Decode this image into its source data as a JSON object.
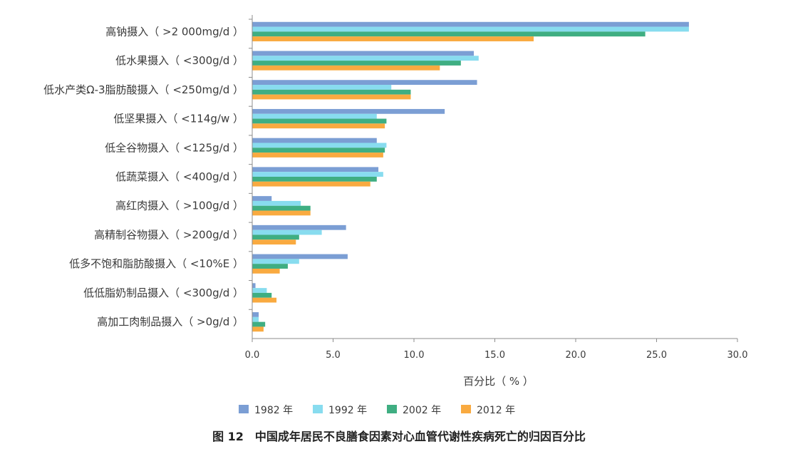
{
  "chart_data": {
    "type": "bar",
    "orientation": "horizontal",
    "categories": [
      "高钠摄入（ >2 000mg/d ）",
      "低水果摄入（ <300g/d ）",
      "低水产类Ω-3脂肪酸摄入（ <250mg/d ）",
      "低坚果摄入（ <114g/w ）",
      "低全谷物摄入（ <125g/d ）",
      "低蔬菜摄入（ <400g/d ）",
      "高红肉摄入（ >100g/d ）",
      "高精制谷物摄入（ >200g/d ）",
      "低多不饱和脂肪酸摄入（ <10%E ）",
      "低低脂奶制品摄入（ <300g/d ）",
      "高加工肉制品摄入（ >0g/d ）"
    ],
    "series": [
      {
        "name": "1982 年",
        "color": "#7b9ed4",
        "values": [
          27.0,
          13.7,
          13.9,
          11.9,
          7.7,
          7.8,
          1.2,
          5.8,
          5.9,
          0.2,
          0.4
        ]
      },
      {
        "name": "1992 年",
        "color": "#88dcef",
        "values": [
          27.0,
          14.0,
          8.6,
          7.7,
          8.3,
          8.1,
          3.0,
          4.3,
          2.9,
          0.9,
          0.4
        ]
      },
      {
        "name": "2002 年",
        "color": "#3fae82",
        "values": [
          24.3,
          12.9,
          9.8,
          8.3,
          8.2,
          7.7,
          3.6,
          2.9,
          2.2,
          1.2,
          0.8
        ]
      },
      {
        "name": "2012 年",
        "color": "#f9aa40",
        "values": [
          17.4,
          11.6,
          9.8,
          8.2,
          8.1,
          7.3,
          3.6,
          2.7,
          1.7,
          1.5,
          0.7
        ]
      }
    ],
    "xlabel": "百分比（ % ）",
    "xlim": [
      0,
      30
    ],
    "xticks": [
      "0.0",
      "5.0",
      "10.0",
      "15.0",
      "20.0",
      "25.0",
      "30.0"
    ],
    "grid": false,
    "legend_position": "bottom"
  },
  "caption": "图 12　中国成年居民不良膳食因素对心血管代谢性疾病死亡的归因百分比"
}
